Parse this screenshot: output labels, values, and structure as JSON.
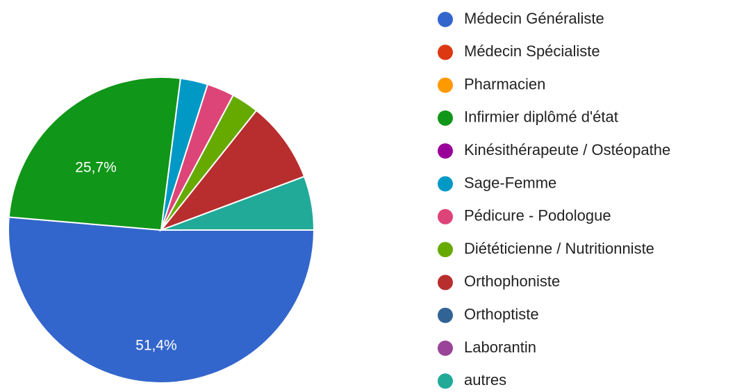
{
  "chart_data": {
    "type": "pie",
    "categories": [
      "Médecin Généraliste",
      "Médecin Spécialiste",
      "Pharmacien",
      "Infirmier diplômé d'état",
      "Kinésithérapeute / Ostéopathe",
      "Sage-Femme",
      "Pédicure - Podologue",
      "Diététicienne / Nutritionniste",
      "Orthophoniste",
      "Orthoptiste",
      "Laborantin",
      "autres"
    ],
    "values": [
      51.4,
      0,
      0,
      25.7,
      0,
      2.9,
      2.9,
      2.9,
      8.6,
      0,
      0,
      5.7
    ],
    "value_labels": [
      "51,4%",
      null,
      null,
      "25,7%",
      null,
      null,
      null,
      null,
      null,
      null,
      null,
      null
    ],
    "colors": [
      "#3366cc",
      "#dc3912",
      "#ff9900",
      "#109618",
      "#990099",
      "#0099c6",
      "#dd4477",
      "#66aa00",
      "#b82e2e",
      "#316395",
      "#994499",
      "#22aa99"
    ],
    "legend": "right"
  }
}
